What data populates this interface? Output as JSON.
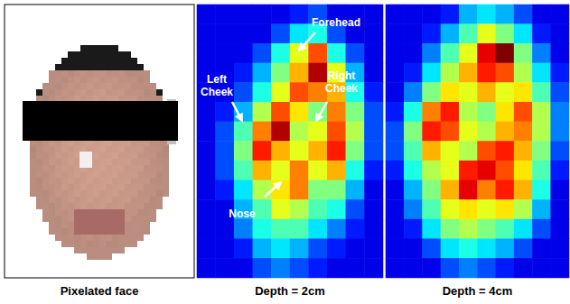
{
  "image": {
    "caption": "Pixelated face"
  },
  "chart_data": [
    {
      "type": "heatmap",
      "title": "Depth = 2cm",
      "tick_labels": false,
      "zlim": [
        0,
        1
      ],
      "cells": [
        [
          0.1,
          0.1,
          0.1,
          0.1,
          0.1,
          0.15,
          0.2,
          0.1,
          0.1,
          0.1
        ],
        [
          0.1,
          0.1,
          0.1,
          0.1,
          0.2,
          0.35,
          0.4,
          0.2,
          0.1,
          0.1
        ],
        [
          0.1,
          0.1,
          0.1,
          0.2,
          0.4,
          0.6,
          0.8,
          0.4,
          0.2,
          0.1
        ],
        [
          0.1,
          0.1,
          0.15,
          0.3,
          0.5,
          0.7,
          0.95,
          0.6,
          0.3,
          0.1
        ],
        [
          0.1,
          0.1,
          0.2,
          0.4,
          0.6,
          0.8,
          0.75,
          0.7,
          0.4,
          0.15
        ],
        [
          0.1,
          0.15,
          0.3,
          0.55,
          0.8,
          0.65,
          0.5,
          0.75,
          0.5,
          0.2
        ],
        [
          0.1,
          0.2,
          0.45,
          0.75,
          0.95,
          0.55,
          0.6,
          0.8,
          0.55,
          0.2
        ],
        [
          0.1,
          0.2,
          0.5,
          0.85,
          0.7,
          0.6,
          0.7,
          0.85,
          0.5,
          0.2
        ],
        [
          0.1,
          0.2,
          0.45,
          0.7,
          0.6,
          0.75,
          0.6,
          0.7,
          0.4,
          0.15
        ],
        [
          0.1,
          0.15,
          0.35,
          0.55,
          0.65,
          0.75,
          0.5,
          0.5,
          0.3,
          0.1
        ],
        [
          0.1,
          0.1,
          0.3,
          0.45,
          0.6,
          0.55,
          0.45,
          0.4,
          0.2,
          0.1
        ],
        [
          0.1,
          0.1,
          0.25,
          0.4,
          0.45,
          0.45,
          0.35,
          0.25,
          0.15,
          0.1
        ],
        [
          0.1,
          0.1,
          0.15,
          0.3,
          0.35,
          0.3,
          0.2,
          0.15,
          0.1,
          0.1
        ],
        [
          0.1,
          0.1,
          0.1,
          0.2,
          0.25,
          0.2,
          0.15,
          0.1,
          0.1,
          0.1
        ]
      ],
      "annotations": [
        {
          "text": "Forehead"
        },
        {
          "text": "Left Cheek"
        },
        {
          "text": "Right Cheek"
        },
        {
          "text": "Nose"
        }
      ]
    },
    {
      "type": "heatmap",
      "title": "Depth = 4cm",
      "tick_labels": false,
      "zlim": [
        0,
        1
      ],
      "cells": [
        [
          0.1,
          0.1,
          0.1,
          0.15,
          0.3,
          0.35,
          0.3,
          0.2,
          0.1,
          0.1
        ],
        [
          0.1,
          0.1,
          0.15,
          0.3,
          0.45,
          0.6,
          0.5,
          0.35,
          0.15,
          0.1
        ],
        [
          0.1,
          0.1,
          0.25,
          0.45,
          0.6,
          0.9,
          1.0,
          0.5,
          0.25,
          0.1
        ],
        [
          0.1,
          0.15,
          0.35,
          0.55,
          0.7,
          0.85,
          0.8,
          0.55,
          0.35,
          0.15
        ],
        [
          0.1,
          0.25,
          0.5,
          0.65,
          0.6,
          0.7,
          0.6,
          0.65,
          0.45,
          0.2
        ],
        [
          0.15,
          0.4,
          0.75,
          0.85,
          0.55,
          0.5,
          0.65,
          0.8,
          0.55,
          0.25
        ],
        [
          0.2,
          0.5,
          0.85,
          0.8,
          0.6,
          0.55,
          0.7,
          0.75,
          0.55,
          0.25
        ],
        [
          0.2,
          0.45,
          0.7,
          0.6,
          0.55,
          0.8,
          0.85,
          0.7,
          0.5,
          0.2
        ],
        [
          0.15,
          0.4,
          0.55,
          0.6,
          0.85,
          0.9,
          0.8,
          0.65,
          0.45,
          0.15
        ],
        [
          0.1,
          0.3,
          0.5,
          0.7,
          0.9,
          0.75,
          0.85,
          0.7,
          0.4,
          0.1
        ],
        [
          0.1,
          0.25,
          0.45,
          0.6,
          0.65,
          0.6,
          0.65,
          0.55,
          0.3,
          0.1
        ],
        [
          0.1,
          0.15,
          0.35,
          0.5,
          0.55,
          0.5,
          0.45,
          0.35,
          0.2,
          0.1
        ],
        [
          0.1,
          0.1,
          0.2,
          0.35,
          0.4,
          0.35,
          0.3,
          0.2,
          0.1,
          0.1
        ],
        [
          0.1,
          0.1,
          0.1,
          0.2,
          0.25,
          0.2,
          0.15,
          0.1,
          0.1,
          0.1
        ]
      ]
    }
  ]
}
